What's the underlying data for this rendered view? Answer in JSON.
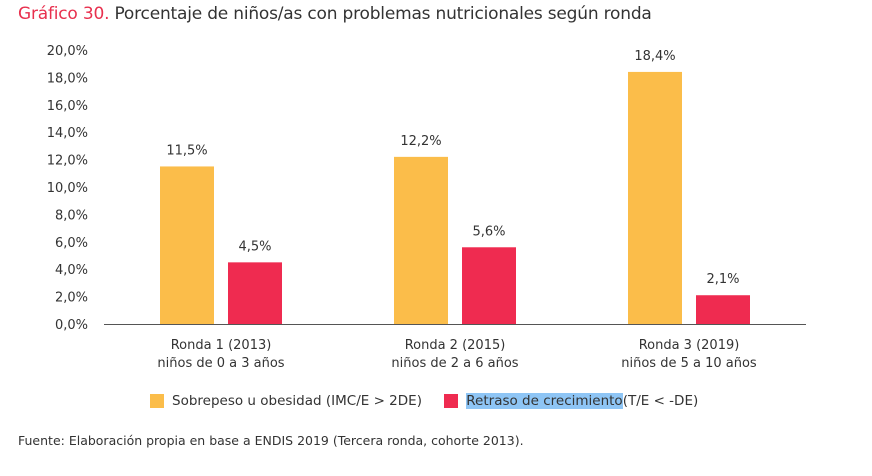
{
  "title": {
    "prefix": "Gráfico 30.",
    "text": " Porcentaje de niños/as con problemas nutricionales según ronda"
  },
  "chart_data": {
    "type": "bar",
    "categories": [
      [
        "Ronda 1 (2013)",
        "niños de 0 a 3 años"
      ],
      [
        "Ronda 2 (2015)",
        "niños de 2 a 6 años"
      ],
      [
        "Ronda 3 (2019)",
        "niños de 5 a 10 años"
      ]
    ],
    "series": [
      {
        "name": "Sobrepeso u obesidad (IMC/E > 2DE)",
        "values": [
          11.5,
          12.2,
          18.4
        ],
        "labels": [
          "11,5%",
          "12,2%",
          "18,4%"
        ],
        "color": "#fbbd4a"
      },
      {
        "name": "Retraso de crecimiento (T/E < -DE)",
        "values": [
          4.5,
          5.6,
          2.1
        ],
        "labels": [
          "4,5%",
          "5,6%",
          "2,1%"
        ],
        "color": "#ef2b50"
      }
    ],
    "ylim": [
      0,
      20
    ],
    "yticks": [
      "0,0%",
      "2,0%",
      "4,0%",
      "6,0%",
      "8,0%",
      "10,0%",
      "12,0%",
      "14,0%",
      "16,0%",
      "18,0%",
      "20,0%"
    ],
    "grid": false,
    "legend_position": "bottom"
  },
  "legend": {
    "item1": "Sobrepeso u obesidad (IMC/E > 2DE)",
    "item2_highlight": "Retraso de crecimiento",
    "item2_rest": " (T/E < -DE)"
  },
  "source": "Fuente: Elaboración propia en base a ENDIS 2019 (Tercera ronda, cohorte 2013)."
}
